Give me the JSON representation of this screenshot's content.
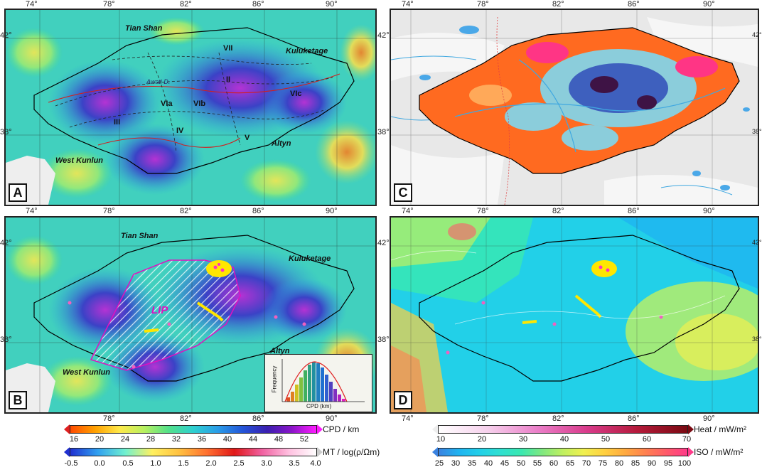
{
  "panels": [
    {
      "id": "A",
      "label": "A"
    },
    {
      "id": "B",
      "label": "B"
    },
    {
      "id": "C",
      "label": "C"
    },
    {
      "id": "D",
      "label": "D"
    }
  ],
  "lon_ticks": [
    "74°",
    "78°",
    "82°",
    "86°",
    "90°"
  ],
  "lat_ticks": [
    "42°",
    "38°"
  ],
  "places": {
    "tian_shan": "Tian Shan",
    "kuluketage": "Kuluketage",
    "west_kunlun": "West Kunlun",
    "altyn": "Altyn",
    "awati": "Awati D.",
    "lip": "LIP"
  },
  "zones": [
    "VII",
    "II",
    "VIa",
    "VIb",
    "VIc",
    "III",
    "IV",
    "V"
  ],
  "inset": {
    "ylabel": "Frequency",
    "xlabel": "CPD (km)",
    "xticks": [
      "15",
      "20",
      "25",
      "30",
      "35",
      "40",
      "45",
      "50"
    ]
  },
  "legends": {
    "cpd": {
      "title": "CPD  / km",
      "ticks": [
        "16",
        "20",
        "24",
        "28",
        "32",
        "36",
        "40",
        "44",
        "48",
        "52"
      ]
    },
    "mt": {
      "title": "MT / log(ρ/Ωm)",
      "ticks": [
        "-0.5",
        "0.0",
        "0.5",
        "1.0",
        "1.5",
        "2.0",
        "2.5",
        "3.0",
        "3.5",
        "4.0"
      ]
    },
    "heat": {
      "title": "Heat / mW/m²",
      "ticks": [
        "10",
        "20",
        "30",
        "40",
        "50",
        "60",
        "70"
      ]
    },
    "iso": {
      "title": "ISO / mW/m²",
      "ticks": [
        "25",
        "30",
        "35",
        "40",
        "45",
        "50",
        "55",
        "60",
        "65",
        "70",
        "75",
        "80",
        "85",
        "90",
        "95",
        "100"
      ]
    }
  },
  "colors": {
    "cpd_gradient": [
      "#ff4b00",
      "#ffa000",
      "#ffe94a",
      "#b7f060",
      "#52e08a",
      "#2ed0d0",
      "#2a9ce8",
      "#2355d8",
      "#3a1fb0",
      "#8a15c8",
      "#ff1cff"
    ],
    "mt_gradient": [
      "#2030d0",
      "#30a0f0",
      "#6ff0d0",
      "#fff060",
      "#ffc040",
      "#ff7030",
      "#e01818",
      "#f060a0",
      "#ffc0e0",
      "#ffffff"
    ],
    "heat_gradient": [
      "#ffffff",
      "#f6d0ec",
      "#ea7ec8",
      "#d83a8a",
      "#b41a3a",
      "#7a0a12"
    ],
    "iso_gradient": [
      "#3a82e0",
      "#1fb4f0",
      "#22d0e8",
      "#30e0d0",
      "#3ae8b0",
      "#80e880",
      "#c0f060",
      "#f0f050",
      "#ffd040",
      "#ffaa40",
      "#ff8050",
      "#ff5a6a",
      "#ff3a8a"
    ]
  }
}
